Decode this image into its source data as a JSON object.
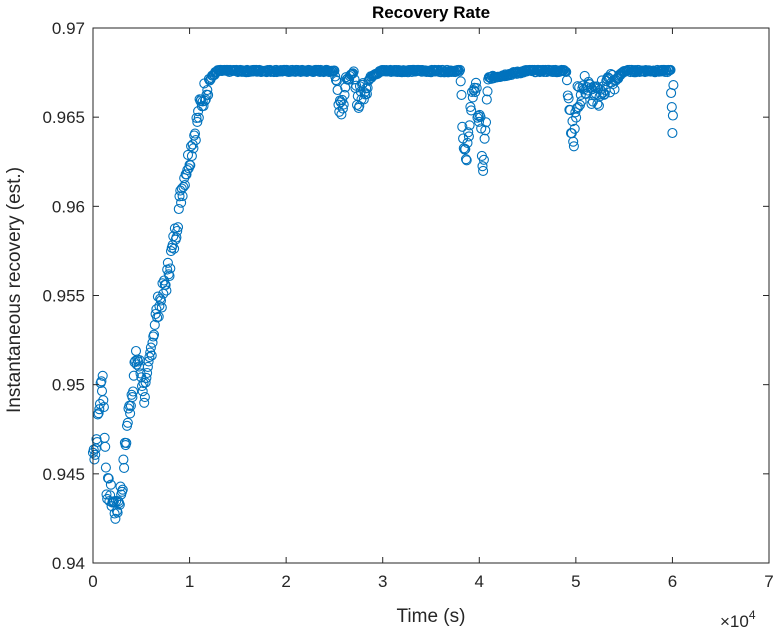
{
  "chart_data": {
    "type": "scatter",
    "title": "Recovery Rate",
    "xlabel": "Time (s)",
    "ylabel": "Instantaneous recovery (est.)",
    "x_multiplier": {
      "base": "×10",
      "exponent": "4"
    },
    "xlim": [
      0,
      70000
    ],
    "ylim": [
      0.94,
      0.97
    ],
    "xticks": [
      0,
      10000,
      20000,
      30000,
      40000,
      50000,
      60000,
      70000
    ],
    "xtick_labels": [
      "0",
      "1",
      "2",
      "3",
      "4",
      "5",
      "6",
      "7"
    ],
    "yticks": [
      0.94,
      0.945,
      0.95,
      0.955,
      0.96,
      0.965,
      0.97
    ],
    "ytick_labels": [
      "0.94",
      "0.945",
      "0.95",
      "0.955",
      "0.96",
      "0.965",
      "0.97"
    ],
    "grid": false,
    "marker": "circle-open",
    "color": "#0072BD",
    "series": [
      {
        "values": [
          [
            0,
            0.9462
          ],
          [
            300,
            0.9465
          ],
          [
            500,
            0.9478
          ],
          [
            800,
            0.9497
          ],
          [
            1000,
            0.9505
          ],
          [
            1200,
            0.9475
          ],
          [
            1400,
            0.9443
          ],
          [
            1700,
            0.944
          ],
          [
            2000,
            0.9435
          ],
          [
            2400,
            0.9428
          ],
          [
            2700,
            0.9436
          ],
          [
            3000,
            0.9442
          ],
          [
            3300,
            0.9462
          ],
          [
            3600,
            0.948
          ],
          [
            4000,
            0.9495
          ],
          [
            4300,
            0.951
          ],
          [
            4600,
            0.9515
          ],
          [
            5000,
            0.9505
          ],
          [
            5300,
            0.9495
          ],
          [
            5600,
            0.95
          ],
          [
            6000,
            0.952
          ],
          [
            6400,
            0.9535
          ],
          [
            6800,
            0.9545
          ],
          [
            7200,
            0.955
          ],
          [
            7600,
            0.9558
          ],
          [
            8000,
            0.957
          ],
          [
            8400,
            0.958
          ],
          [
            8800,
            0.9595
          ],
          [
            9200,
            0.961
          ],
          [
            9600,
            0.962
          ],
          [
            10000,
            0.9628
          ],
          [
            10400,
            0.9638
          ],
          [
            10800,
            0.9648
          ],
          [
            11200,
            0.9658
          ],
          [
            11600,
            0.9665
          ],
          [
            12000,
            0.967
          ],
          [
            12500,
            0.9674
          ],
          [
            13000,
            0.9676
          ],
          [
            15000,
            0.9676
          ],
          [
            20000,
            0.9676
          ],
          [
            25000,
            0.9676
          ],
          [
            25500,
            0.966
          ],
          [
            25800,
            0.9658
          ],
          [
            26200,
            0.967
          ],
          [
            27000,
            0.9675
          ],
          [
            27500,
            0.9657
          ],
          [
            27800,
            0.9665
          ],
          [
            29000,
            0.9674
          ],
          [
            30000,
            0.9676
          ],
          [
            35000,
            0.9676
          ],
          [
            38000,
            0.9676
          ],
          [
            38400,
            0.9635
          ],
          [
            38700,
            0.9622
          ],
          [
            39000,
            0.965
          ],
          [
            39500,
            0.967
          ],
          [
            40200,
            0.964
          ],
          [
            40400,
            0.9617
          ],
          [
            40700,
            0.965
          ],
          [
            41000,
            0.9672
          ],
          [
            45000,
            0.9676
          ],
          [
            49000,
            0.9676
          ],
          [
            49500,
            0.9648
          ],
          [
            49800,
            0.9635
          ],
          [
            50100,
            0.966
          ],
          [
            51000,
            0.9668
          ],
          [
            52000,
            0.966
          ],
          [
            53000,
            0.9668
          ],
          [
            54000,
            0.967
          ],
          [
            55000,
            0.9676
          ],
          [
            59800,
            0.9676
          ],
          [
            60000,
            0.9645
          ],
          [
            60100,
            0.9668
          ]
        ]
      }
    ]
  }
}
